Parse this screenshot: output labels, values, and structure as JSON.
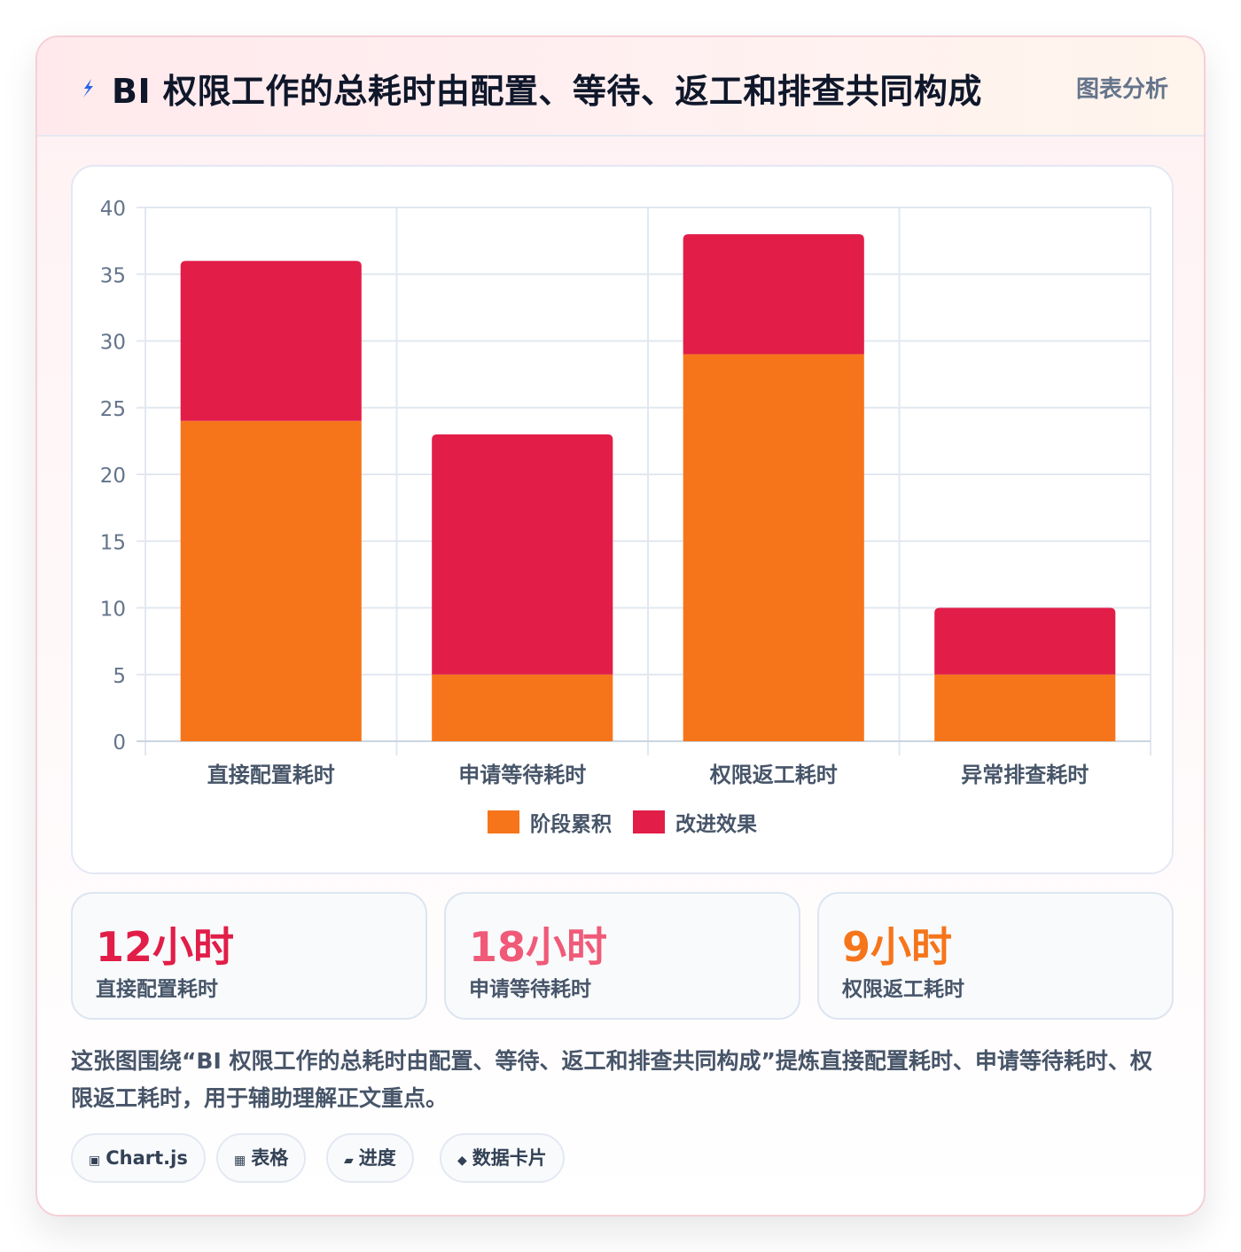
{
  "header": {
    "title": "BI 权限工作的总耗时由配置、等待、返工和排查共同构成",
    "tag": "图表分析",
    "icon": "lightning-icon"
  },
  "chart_data": {
    "type": "bar",
    "stacked": true,
    "categories": [
      "直接配置耗时",
      "申请等待耗时",
      "权限返工耗时",
      "异常排查耗时"
    ],
    "series": [
      {
        "name": "阶段累积",
        "values": [
          24,
          5,
          29,
          5
        ],
        "color": "#f6751b"
      },
      {
        "name": "改进效果",
        "values": [
          12,
          18,
          9,
          5
        ],
        "color": "#e11d48"
      }
    ],
    "ylim": [
      0,
      40
    ],
    "yticks": [
      0,
      5,
      10,
      15,
      20,
      25,
      30,
      35,
      40
    ],
    "grid": true,
    "legend_position": "bottom"
  },
  "stats": [
    {
      "value": "12小时",
      "label": "直接配置耗时",
      "color": "#e11d48"
    },
    {
      "value": "18小时",
      "label": "申请等待耗时",
      "color": "#f05a78"
    },
    {
      "value": "9小时",
      "label": "权限返工耗时",
      "color": "#f6751b"
    }
  ],
  "description": "这张图围绕“BI 权限工作的总耗时由配置、等待、返工和排查共同构成”提炼直接配置耗时、申请等待耗时、权限返工耗时，用于辅助理解正文重点。",
  "chips": [
    {
      "icon": "▣",
      "label": "Chart.js"
    },
    {
      "icon": "▦",
      "label": "表格"
    },
    {
      "icon": "▰",
      "label": "进度"
    },
    {
      "icon": "◆",
      "label": "数据卡片"
    }
  ]
}
